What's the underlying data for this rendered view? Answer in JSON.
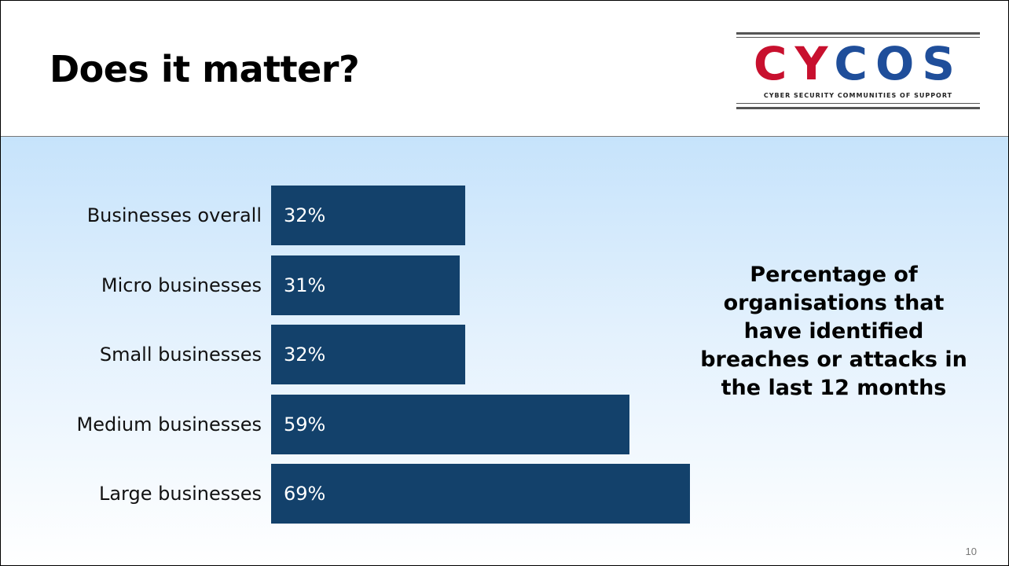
{
  "slide": {
    "title": "Does it matter?",
    "page_number": "10"
  },
  "logo": {
    "word_part1": "CY",
    "word_part2": "COS",
    "tagline": "Cyber Security Communities of Support",
    "colors": {
      "red": "#c8102e",
      "blue": "#1f4e9a"
    }
  },
  "chart_data": {
    "type": "bar",
    "orientation": "horizontal",
    "title": "Percentage of organisations that have identified breaches or attacks in the last 12 months",
    "categories": [
      "Businesses overall",
      "Micro businesses",
      "Small businesses",
      "Medium businesses",
      "Large businesses"
    ],
    "values": [
      32,
      31,
      32,
      59,
      69
    ],
    "value_labels": [
      "32%",
      "31%",
      "32%",
      "59%",
      "69%"
    ],
    "xlim": [
      0,
      100
    ],
    "grid": false,
    "bar_color": "#13416b"
  }
}
